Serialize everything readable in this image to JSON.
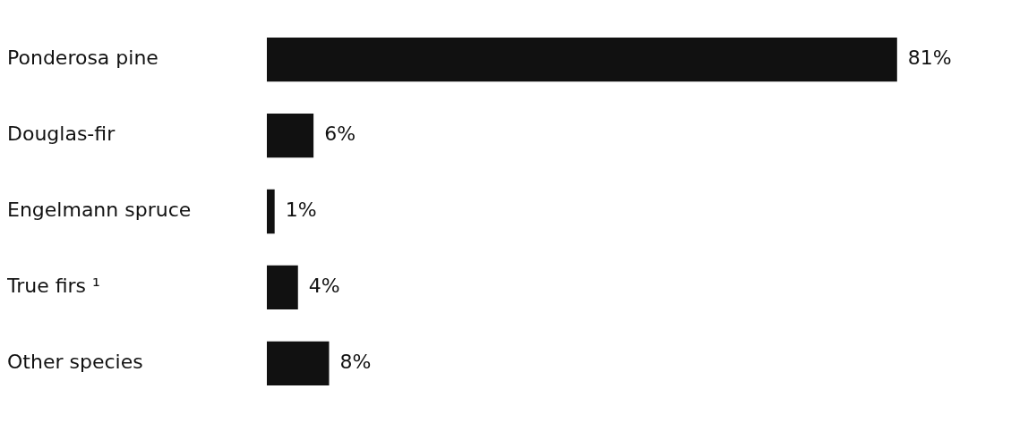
{
  "chart_data": {
    "type": "bar",
    "orientation": "horizontal",
    "categories": [
      "Ponderosa pine",
      "Douglas-fir",
      "Engelmann spruce",
      "True firs ¹",
      "Other species"
    ],
    "values": [
      81,
      6,
      1,
      4,
      8
    ],
    "value_labels": [
      "81%",
      "6%",
      "1%",
      "4%",
      "8%"
    ],
    "color": "#111111",
    "grid": false
  }
}
